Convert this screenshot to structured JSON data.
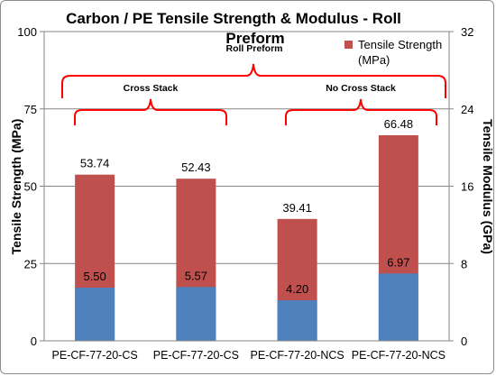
{
  "chart_data": {
    "type": "bar",
    "title_line1": "Carbon / PE Tensile Strength & Modulus - Roll",
    "title_line2": "Preform",
    "ylabel": "Tensile Strength (MPa)",
    "y2label": "Tensile Modulus (GPa)",
    "ylim": [
      0,
      100
    ],
    "y2lim": [
      0,
      32
    ],
    "yticks": [
      "0",
      "25",
      "50",
      "75",
      "100"
    ],
    "y2ticks": [
      "0",
      "8",
      "16",
      "24",
      "32"
    ],
    "categories": [
      "PE-CF-77-20-CS",
      "PE-CF-77-20-CS",
      "PE-CF-77-20-NCS",
      "PE-CF-77-20-NCS"
    ],
    "series": [
      {
        "name": "Tensile Strength (MPa)",
        "axis": "left",
        "values": [
          53.74,
          52.43,
          39.41,
          66.48
        ],
        "color": "#c0504d"
      },
      {
        "axis": "right",
        "values": [
          5.5,
          5.57,
          4.2,
          6.97
        ],
        "color": "#4f81bd"
      }
    ],
    "strength_labels": [
      "53.74",
      "52.43",
      "39.41",
      "66.48"
    ],
    "modulus_labels": [
      "5.50",
      "5.57",
      "4.20",
      "6.97"
    ],
    "legend": {
      "line1": "Tensile Strength",
      "line2": "(MPa)",
      "position": "top-right"
    },
    "annotations": {
      "outer": "Roll Preform",
      "left_group": "Cross Stack",
      "right_group": "No Cross Stack",
      "brace_color": "#ff0000"
    },
    "grid": true
  }
}
